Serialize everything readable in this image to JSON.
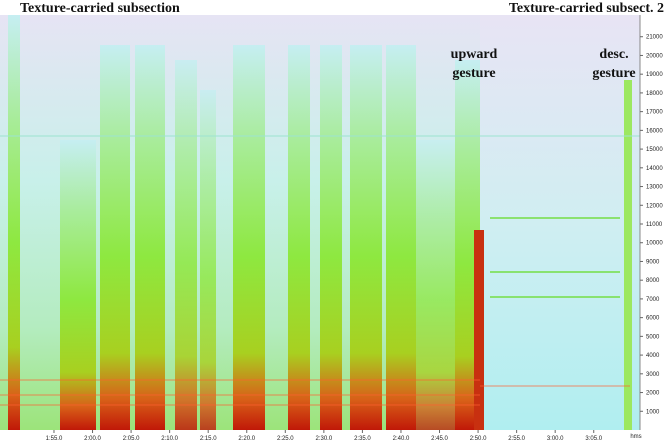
{
  "chart_data": {
    "type": "spectrogram",
    "annotations": [
      {
        "text": "Texture-carried subsection",
        "anchor": "start"
      },
      {
        "text": "Texture-carried subsect. 2",
        "anchor": "end"
      },
      {
        "lines": [
          "upward",
          "gesture"
        ]
      },
      {
        "lines": [
          "desc.",
          "gesture"
        ]
      }
    ],
    "xlabel": "hms",
    "xlim": [
      108,
      191
    ],
    "xticks": [
      {
        "value": 115,
        "label": "1:55.0"
      },
      {
        "value": 120,
        "label": "2:00.0"
      },
      {
        "value": 125,
        "label": "2:05.0"
      },
      {
        "value": 130,
        "label": "2:10.0"
      },
      {
        "value": 135,
        "label": "2:15.0"
      },
      {
        "value": 140,
        "label": "2:20.0"
      },
      {
        "value": 145,
        "label": "2:25.0"
      },
      {
        "value": 150,
        "label": "2:30.0"
      },
      {
        "value": 155,
        "label": "2:35.0"
      },
      {
        "value": 160,
        "label": "2:40.0"
      },
      {
        "value": 165,
        "label": "2:45.0"
      },
      {
        "value": 170,
        "label": "2:50.0"
      },
      {
        "value": 175,
        "label": "2:55.0"
      },
      {
        "value": 180,
        "label": "3:00.0"
      },
      {
        "value": 185,
        "label": "3:05.0"
      }
    ],
    "ylim": [
      0,
      22000
    ],
    "yticks": [
      1000,
      2000,
      3000,
      4000,
      5000,
      6000,
      7000,
      8000,
      9000,
      10000,
      11000,
      12000,
      13000,
      14000,
      15000,
      16000,
      17000,
      18000,
      19000,
      20000,
      21000
    ]
  }
}
